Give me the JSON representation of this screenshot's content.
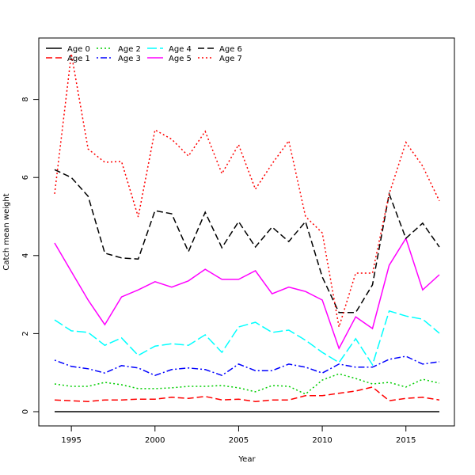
{
  "chart_data": {
    "type": "line",
    "title": "",
    "xlabel": "Year",
    "ylabel": "Catch mean weight",
    "xlim": [
      1994,
      2017
    ],
    "ylim": [
      0,
      9.2
    ],
    "x_ticks": [
      1995,
      2000,
      2005,
      2010,
      2015
    ],
    "y_ticks": [
      0,
      2,
      4,
      6,
      8
    ],
    "legend_placement": "top-left",
    "x": [
      1994,
      1995,
      1996,
      1997,
      1998,
      1999,
      2000,
      2001,
      2002,
      2003,
      2004,
      2005,
      2006,
      2007,
      2008,
      2009,
      2010,
      2011,
      2012,
      2013,
      2014,
      2015,
      2016,
      2017
    ],
    "series": [
      {
        "name": "Age 0",
        "color": "#000000",
        "style": "solid",
        "values": [
          0,
          0,
          0,
          0,
          0,
          0,
          0,
          0,
          0,
          0,
          0,
          0,
          0,
          0,
          0,
          0,
          0,
          0,
          0,
          0,
          0,
          0,
          0,
          0
        ]
      },
      {
        "name": "Age 1",
        "color": "#ff0000",
        "style": "dashed",
        "values": [
          0.3,
          0.28,
          0.26,
          0.3,
          0.3,
          0.32,
          0.32,
          0.37,
          0.34,
          0.39,
          0.3,
          0.32,
          0.26,
          0.3,
          0.3,
          0.41,
          0.41,
          0.47,
          0.53,
          0.63,
          0.28,
          0.34,
          0.37,
          0.3
        ]
      },
      {
        "name": "Age 2",
        "color": "#00cd00",
        "style": "dotted",
        "values": [
          0.71,
          0.65,
          0.65,
          0.75,
          0.69,
          0.59,
          0.59,
          0.61,
          0.65,
          0.65,
          0.67,
          0.61,
          0.51,
          0.67,
          0.65,
          0.45,
          0.81,
          0.97,
          0.85,
          0.71,
          0.75,
          0.63,
          0.83,
          0.73
        ]
      },
      {
        "name": "Age 3",
        "color": "#0000ff",
        "style": "dotdash",
        "values": [
          1.32,
          1.16,
          1.1,
          0.99,
          1.18,
          1.12,
          0.93,
          1.08,
          1.12,
          1.08,
          0.93,
          1.22,
          1.05,
          1.05,
          1.22,
          1.14,
          0.99,
          1.22,
          1.14,
          1.14,
          1.34,
          1.42,
          1.22,
          1.28
        ]
      },
      {
        "name": "Age 4",
        "color": "#00ffff",
        "style": "longdash",
        "values": [
          2.35,
          2.07,
          2.03,
          1.7,
          1.89,
          1.44,
          1.68,
          1.74,
          1.7,
          1.97,
          1.52,
          2.17,
          2.29,
          2.03,
          2.09,
          1.83,
          1.52,
          1.26,
          1.87,
          1.2,
          2.58,
          2.45,
          2.37,
          2.01
        ]
      },
      {
        "name": "Age 5",
        "color": "#ff00ff",
        "style": "solid",
        "values": [
          4.32,
          3.59,
          2.86,
          2.23,
          2.94,
          3.12,
          3.33,
          3.19,
          3.35,
          3.65,
          3.39,
          3.39,
          3.61,
          3.02,
          3.19,
          3.08,
          2.86,
          1.62,
          2.43,
          2.13,
          3.75,
          4.44,
          3.12,
          3.51
        ]
      },
      {
        "name": "Age 6",
        "color": "#000000",
        "style": "dashed",
        "values": [
          6.2,
          6.0,
          5.52,
          4.06,
          3.94,
          3.91,
          5.15,
          5.07,
          4.1,
          5.11,
          4.2,
          4.87,
          4.22,
          4.73,
          4.36,
          4.87,
          3.45,
          2.54,
          2.54,
          3.25,
          5.58,
          4.44,
          4.83,
          4.22
        ]
      },
      {
        "name": "Age 7",
        "color": "#ff0000",
        "style": "dotted",
        "values": [
          5.58,
          9.17,
          6.73,
          6.39,
          6.41,
          4.99,
          7.22,
          6.98,
          6.55,
          7.18,
          6.1,
          6.84,
          5.7,
          6.35,
          6.94,
          5.0,
          4.58,
          2.17,
          3.55,
          3.55,
          5.58,
          6.9,
          6.29,
          5.4
        ]
      }
    ]
  }
}
